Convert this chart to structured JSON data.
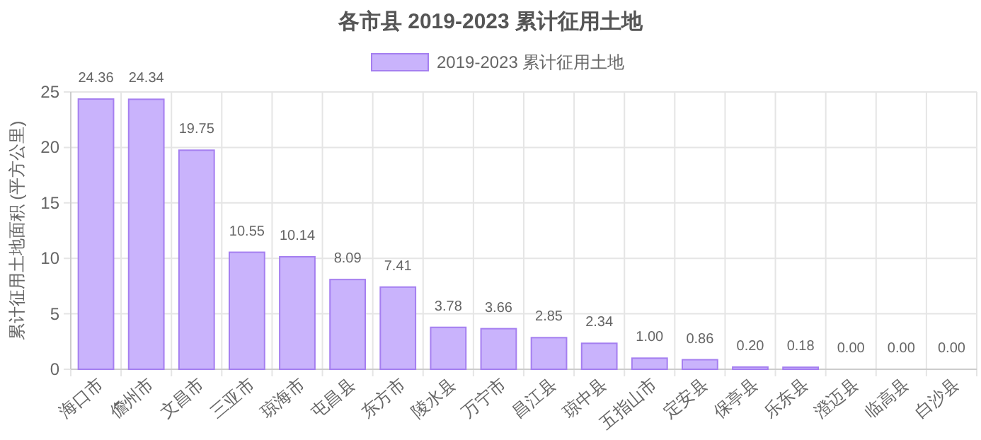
{
  "chart_data": {
    "type": "bar",
    "title": "各市县 2019-2023 累计征用土地",
    "ylabel": "累计征用土地面积 (平方公里)",
    "categories": [
      "海口市",
      "儋州市",
      "文昌市",
      "三亚市",
      "琼海市",
      "屯昌县",
      "东方市",
      "陵水县",
      "万宁市",
      "昌江县",
      "琼中县",
      "五指山市",
      "定安县",
      "保亭县",
      "乐东县",
      "澄迈县",
      "临高县",
      "白沙县"
    ],
    "series": [
      {
        "name": "2019-2023 累计征用土地",
        "color": "#c9b3fc",
        "values": [
          24.36,
          24.34,
          19.75,
          10.55,
          10.14,
          8.09,
          7.41,
          3.78,
          3.66,
          2.85,
          2.34,
          1.0,
          0.86,
          0.2,
          0.18,
          0.0,
          0.0,
          0.0
        ],
        "value_labels": [
          "24.36",
          "24.34",
          "19.75",
          "10.55",
          "10.14",
          "8.09",
          "7.41",
          "3.78",
          "3.66",
          "2.85",
          "2.34",
          "1.00",
          "0.86",
          "0.20",
          "0.18",
          "0.00",
          "0.00",
          "0.00"
        ]
      }
    ],
    "ylim": [
      0,
      25
    ],
    "yticks": [
      0,
      5,
      10,
      15,
      20,
      25
    ],
    "grid": true,
    "legend": "top"
  }
}
